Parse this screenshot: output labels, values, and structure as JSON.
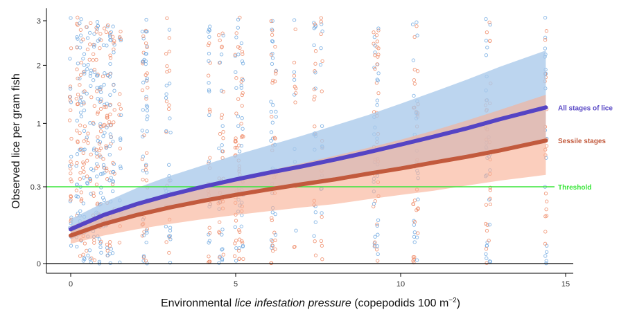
{
  "chart_data": {
    "type": "scatter",
    "title": "",
    "xlabel": {
      "prefix": "Environmental ",
      "italic": "lice infestation pressure",
      "suffix": " (copepodids 100 m",
      "superscript": "−2",
      "close": ")"
    },
    "ylabel": "Observed lice per gram fish",
    "xlim": [
      -0.65,
      15.3
    ],
    "ylim": [
      -0.12,
      3.15
    ],
    "y_scale": "sqrt",
    "grid": false,
    "x_ticks": [
      {
        "value": 0,
        "label": "0"
      },
      {
        "value": 5,
        "label": "5"
      },
      {
        "value": 10,
        "label": "10"
      },
      {
        "value": 15,
        "label": "15"
      }
    ],
    "y_ticks": [
      {
        "value": 0,
        "label": "0"
      },
      {
        "value": 0.3,
        "label": "0.3"
      },
      {
        "value": 1,
        "label": "1"
      },
      {
        "value": 2,
        "label": "2"
      },
      {
        "value": 3,
        "label": "3"
      }
    ],
    "threshold": {
      "value": 0.3,
      "label": "Threshold",
      "color": "#39e639"
    },
    "series": [
      {
        "name": "All stages of lice",
        "color": "#5544c4",
        "band_color": "#a9c9ea",
        "point_color": "#6ea8e0",
        "x": [
          0,
          1,
          2,
          3,
          4,
          5,
          6,
          7,
          8,
          9,
          10,
          11,
          12,
          13,
          14.4
        ],
        "fit": [
          0.06,
          0.12,
          0.18,
          0.24,
          0.3,
          0.36,
          0.42,
          0.48,
          0.55,
          0.63,
          0.72,
          0.82,
          0.93,
          1.06,
          1.24
        ],
        "lower": [
          0.03,
          0.07,
          0.11,
          0.15,
          0.19,
          0.23,
          0.27,
          0.31,
          0.36,
          0.41,
          0.46,
          0.52,
          0.58,
          0.64,
          0.74
        ],
        "upper": [
          0.1,
          0.19,
          0.29,
          0.39,
          0.49,
          0.6,
          0.71,
          0.83,
          0.97,
          1.12,
          1.3,
          1.5,
          1.72,
          1.97,
          2.31
        ]
      },
      {
        "name": "Sessile stages",
        "color": "#c25a3d",
        "band_color": "#f8b095",
        "point_color": "#ef8a66",
        "x": [
          0,
          1,
          2,
          3,
          4,
          5,
          6,
          7,
          8,
          9,
          10,
          11,
          12,
          13,
          14.4
        ],
        "fit": [
          0.04,
          0.08,
          0.12,
          0.16,
          0.2,
          0.24,
          0.28,
          0.32,
          0.36,
          0.41,
          0.46,
          0.52,
          0.58,
          0.65,
          0.77
        ],
        "lower": [
          0.02,
          0.04,
          0.06,
          0.08,
          0.1,
          0.12,
          0.14,
          0.16,
          0.18,
          0.21,
          0.24,
          0.27,
          0.31,
          0.35,
          0.4
        ],
        "upper": [
          0.07,
          0.13,
          0.19,
          0.25,
          0.31,
          0.37,
          0.44,
          0.51,
          0.59,
          0.68,
          0.78,
          0.9,
          1.04,
          1.2,
          1.45
        ]
      }
    ],
    "point_columns_x": [
      0,
      0.2,
      0.3,
      0.4,
      0.5,
      0.6,
      0.7,
      0.8,
      0.9,
      1.0,
      1.1,
      1.2,
      1.3,
      1.5,
      2.2,
      2.3,
      2.9,
      3.0,
      4.2,
      4.5,
      4.6,
      5.0,
      5.1,
      5.2,
      6.1,
      6.2,
      6.8,
      7.4,
      7.6,
      9.2,
      9.3,
      10.4,
      10.5,
      12.6,
      12.7,
      14.4
    ]
  }
}
